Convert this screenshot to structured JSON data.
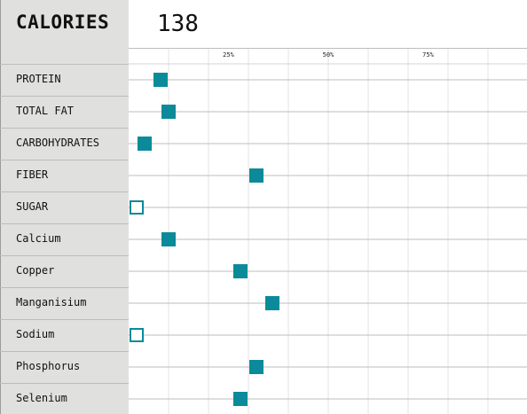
{
  "header": {
    "label": "CALORIES",
    "value": "138"
  },
  "chart_data": {
    "type": "scatter",
    "x_ticks": [
      "25%",
      "50%",
      "75%"
    ],
    "xlim": [
      0,
      100
    ],
    "grid": true,
    "marker_color": "#0b8a99",
    "rows": [
      {
        "label": "PROTEIN",
        "value": 8,
        "filled": true
      },
      {
        "label": "TOTAL FAT",
        "value": 10,
        "filled": true
      },
      {
        "label": "CARBOHYDRATES",
        "value": 4,
        "filled": true
      },
      {
        "label": "FIBER",
        "value": 32,
        "filled": true
      },
      {
        "label": "SUGAR",
        "value": 2,
        "filled": false
      },
      {
        "label": "Calcium",
        "value": 10,
        "filled": true
      },
      {
        "label": "Copper",
        "value": 28,
        "filled": true
      },
      {
        "label": "Manganisium",
        "value": 36,
        "filled": true
      },
      {
        "label": "Sodium",
        "value": 2,
        "filled": false
      },
      {
        "label": "Phosphorus",
        "value": 32,
        "filled": true
      },
      {
        "label": "Selenium",
        "value": 28,
        "filled": true
      }
    ]
  }
}
